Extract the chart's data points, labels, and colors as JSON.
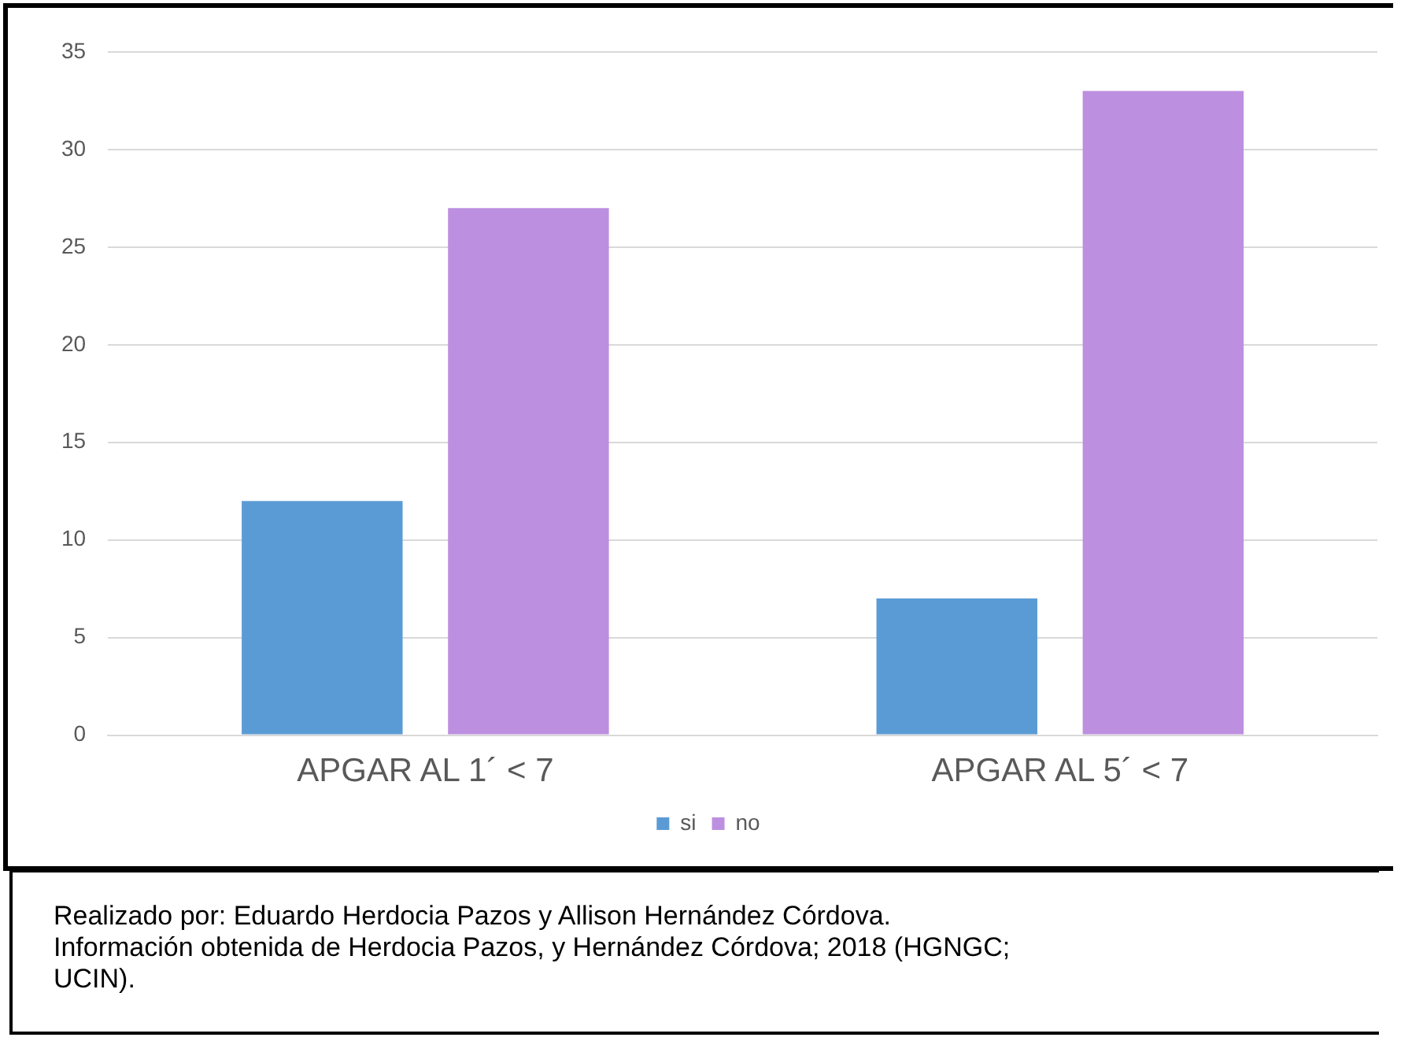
{
  "chart_data": {
    "type": "bar",
    "categories": [
      "APGAR AL 1´ < 7",
      "APGAR AL 5´ < 7"
    ],
    "series": [
      {
        "name": "si",
        "color": "#5b9bd5",
        "values": [
          12,
          7
        ]
      },
      {
        "name": "no",
        "color": "#bd8fe0",
        "values": [
          27,
          33
        ]
      }
    ],
    "ylim": [
      0,
      35
    ],
    "yticks": [
      0,
      5,
      10,
      15,
      20,
      25,
      30,
      35
    ],
    "grid": "y",
    "legend": "bottom",
    "annotations": [
      "Realizado por: Eduardo Herdocia Pazos y Allison Hernández Córdova. Información obtenida de Herdocia Pazos, y Hernández Córdova; 2018 (HGNGC; UCIN)."
    ]
  }
}
